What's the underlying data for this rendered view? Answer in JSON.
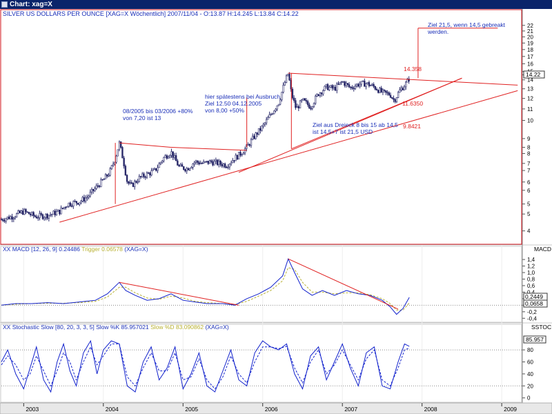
{
  "window": {
    "title": "Chart: xag=X",
    "icon": "chart-window-icon"
  },
  "chart_data": [
    {
      "panel": "price",
      "type": "candlestick",
      "title": "SILVER US DOLLARS PER OUNCE [XAG=X  Wöchentlich] 2007/11/04 - O:13.87 H:14.245 L:13.84 C:14.22",
      "last_price_label": "14.22",
      "y_tick_labels": [
        "4",
        "5",
        "5",
        "6",
        "6",
        "7",
        "7",
        "8",
        "8",
        "9",
        "10",
        "11",
        "12",
        "13",
        "14",
        "15",
        "15",
        "16",
        "17",
        "18",
        "19",
        "20",
        "21",
        "22"
      ],
      "y_tick_values": [
        4,
        4.6,
        5,
        5.6,
        6,
        6.6,
        7,
        7.6,
        8,
        8.6,
        10,
        11,
        12,
        13,
        14,
        14.6,
        15,
        16,
        17,
        18,
        19,
        20,
        21,
        22
      ],
      "y_scale": "log",
      "ylim": [
        3.6,
        23
      ],
      "series": [
        {
          "kind": "weekly-close",
          "x": [
            2002.72,
            2002.85,
            2003.0,
            2003.15,
            2003.3,
            2003.45,
            2003.55,
            2003.7,
            2003.8,
            2003.9,
            2004.0,
            2004.08,
            2004.15,
            2004.2,
            2004.25,
            2004.3,
            2004.35,
            2004.45,
            2004.55,
            2004.65,
            2004.75,
            2004.85,
            2004.95,
            2005.05,
            2005.15,
            2005.25,
            2005.35,
            2005.45,
            2005.55,
            2005.62,
            2005.7,
            2005.8,
            2005.9,
            2006.0,
            2006.1,
            2006.2,
            2006.27,
            2006.32,
            2006.36,
            2006.42,
            2006.5,
            2006.6,
            2006.7,
            2006.8,
            2006.9,
            2007.0,
            2007.1,
            2007.2,
            2007.3,
            2007.4,
            2007.5,
            2007.6,
            2007.65,
            2007.72,
            2007.8,
            2007.84
          ],
          "y": [
            4.4,
            4.5,
            4.7,
            4.5,
            4.55,
            4.7,
            5.0,
            5.1,
            5.3,
            5.7,
            6.1,
            6.5,
            7.3,
            8.3,
            7.2,
            6.0,
            5.8,
            6.2,
            6.4,
            6.6,
            7.3,
            7.7,
            6.8,
            6.7,
            7.1,
            7.0,
            7.1,
            7.0,
            6.9,
            7.2,
            7.5,
            8.0,
            8.8,
            9.5,
            10.5,
            11.6,
            13.5,
            14.8,
            12.5,
            11.0,
            11.8,
            11.2,
            12.5,
            13.2,
            13.0,
            13.8,
            13.1,
            13.5,
            13.6,
            13.2,
            12.6,
            12.4,
            11.8,
            12.8,
            13.6,
            14.2
          ]
        }
      ],
      "trendlines": [
        {
          "x": [
            2004.2,
            2004.85
          ],
          "y": [
            8.3,
            8.0
          ]
        },
        {
          "x": [
            2004.85,
            2005.8
          ],
          "y": [
            8.0,
            7.8
          ]
        },
        {
          "x": [
            2003.45,
            2009.2
          ],
          "y": [
            4.3,
            12.8
          ]
        },
        {
          "x": [
            2005.7,
            2008.5
          ],
          "y": [
            6.5,
            14.2
          ]
        },
        {
          "x": [
            2006.32,
            2009.2
          ],
          "y": [
            14.8,
            13.4
          ]
        },
        {
          "x": [
            2006.36,
            2008.5
          ],
          "y": [
            7.9,
            14.2
          ]
        }
      ],
      "vertical_markers": [
        {
          "x": 2004.15,
          "y": [
            5.0,
            8.3
          ]
        },
        {
          "x": 2005.8,
          "y": [
            8.0,
            12.1
          ]
        },
        {
          "x": 2006.36,
          "y": [
            7.9,
            14.8
          ]
        },
        {
          "x": 2007.95,
          "y": [
            14.2,
            21.5
          ]
        }
      ],
      "target_line": {
        "x": [
          2007.95,
          2008.95
        ],
        "y": 21.5
      },
      "level_labels": [
        "14.358",
        "11.6350",
        "9.8421"
      ],
      "annotations": [
        {
          "lines": [
            "08/2005 bis 03/2006 +80%",
            "von 7,20 ist 13"
          ]
        },
        {
          "lines": [
            "hier spätestens bei Ausbruch",
            "Ziel 12.50 04.12.2005",
            "von 8,00 +50%"
          ]
        },
        {
          "lines": [
            "Ziel aus Dreieck 8 bis 15 ab 14,5",
            "ist 14,5+7 ist 21,5 USD"
          ]
        },
        {
          "lines": [
            "Ziel 21,5, wenn 14,5 gebreakt",
            "werden."
          ]
        }
      ]
    },
    {
      "panel": "macd",
      "type": "line",
      "title": "XX MACD [12, 26, 9] 0.24486",
      "trigger_label": "Trigger 0.06578",
      "symbol_label": "(XAG=X)",
      "axis_title": "MACD",
      "y_tick_labels": [
        "1,4",
        "1,2",
        "1,0",
        "0,8",
        "0,6",
        "0,4",
        "0,2",
        "0",
        "-0,2",
        "-0,4"
      ],
      "y_tick_values": [
        1.4,
        1.2,
        1.0,
        0.8,
        0.6,
        0.4,
        0.2,
        0,
        -0.2,
        -0.4
      ],
      "ylim": [
        -0.5,
        1.55
      ],
      "value_labels": [
        "0,2449",
        "0,0658"
      ],
      "x": [
        2002.72,
        2002.9,
        2003.1,
        2003.3,
        2003.5,
        2003.7,
        2003.9,
        2004.05,
        2004.2,
        2004.28,
        2004.4,
        2004.55,
        2004.7,
        2004.85,
        2005.0,
        2005.15,
        2005.3,
        2005.5,
        2005.65,
        2005.8,
        2005.95,
        2006.1,
        2006.25,
        2006.32,
        2006.4,
        2006.5,
        2006.62,
        2006.75,
        2006.9,
        2007.05,
        2007.2,
        2007.35,
        2007.5,
        2007.6,
        2007.68,
        2007.76,
        2007.84
      ],
      "series": [
        {
          "name": "MACD",
          "values": [
            0.0,
            0.05,
            0.05,
            0.08,
            0.05,
            0.1,
            0.15,
            0.35,
            0.7,
            0.45,
            0.3,
            0.15,
            0.2,
            0.35,
            0.15,
            0.1,
            0.05,
            0.05,
            0.0,
            0.2,
            0.35,
            0.55,
            0.9,
            1.42,
            1.0,
            0.5,
            0.3,
            0.45,
            0.3,
            0.45,
            0.35,
            0.3,
            0.15,
            -0.05,
            -0.28,
            -0.1,
            0.24
          ]
        },
        {
          "name": "Trigger",
          "values": [
            0.0,
            0.03,
            0.05,
            0.06,
            0.06,
            0.08,
            0.12,
            0.25,
            0.55,
            0.55,
            0.38,
            0.22,
            0.18,
            0.28,
            0.22,
            0.12,
            0.08,
            0.05,
            0.02,
            0.12,
            0.28,
            0.45,
            0.75,
            1.15,
            1.1,
            0.7,
            0.4,
            0.4,
            0.35,
            0.38,
            0.38,
            0.32,
            0.2,
            0.05,
            -0.15,
            -0.15,
            0.07
          ]
        }
      ],
      "trendlines": [
        {
          "x": [
            2004.2,
            2005.7
          ],
          "y": [
            0.7,
            0.0
          ]
        },
        {
          "x": [
            2006.32,
            2007.7
          ],
          "y": [
            1.42,
            -0.12
          ]
        }
      ],
      "reference_levels": [
        0.0
      ]
    },
    {
      "panel": "stochastic",
      "type": "line",
      "title": "XX Stochastic Slow [80, 20, 3, 3, 5] Slow %K 85.957021",
      "slow_d_label": "Slow %D 83.090862",
      "symbol_label": "(XAG=X)",
      "axis_title": "SSTOC",
      "y_tick_labels": [
        "80",
        "60",
        "40",
        "20",
        "0"
      ],
      "y_tick_values": [
        80,
        60,
        40,
        20,
        0
      ],
      "ylim": [
        -5,
        110
      ],
      "value_labels": [
        "85.957"
      ],
      "x": [
        2002.72,
        2002.8,
        2002.9,
        2003.0,
        2003.08,
        2003.16,
        2003.25,
        2003.34,
        2003.42,
        2003.5,
        2003.58,
        2003.66,
        2003.75,
        2003.84,
        2003.92,
        2004.0,
        2004.1,
        2004.2,
        2004.3,
        2004.4,
        2004.5,
        2004.6,
        2004.7,
        2004.8,
        2004.9,
        2005.0,
        2005.1,
        2005.2,
        2005.3,
        2005.4,
        2005.5,
        2005.6,
        2005.7,
        2005.8,
        2005.9,
        2006.0,
        2006.1,
        2006.2,
        2006.3,
        2006.4,
        2006.5,
        2006.6,
        2006.7,
        2006.8,
        2006.9,
        2007.0,
        2007.1,
        2007.2,
        2007.3,
        2007.4,
        2007.5,
        2007.6,
        2007.7,
        2007.78,
        2007.84
      ],
      "series": [
        {
          "name": "Slow %K",
          "values": [
            60,
            80,
            40,
            15,
            50,
            85,
            30,
            10,
            60,
            90,
            45,
            20,
            75,
            95,
            40,
            80,
            95,
            90,
            20,
            10,
            60,
            85,
            30,
            50,
            85,
            15,
            40,
            75,
            20,
            10,
            45,
            80,
            30,
            20,
            75,
            95,
            85,
            80,
            90,
            40,
            15,
            70,
            85,
            30,
            60,
            90,
            50,
            20,
            75,
            85,
            20,
            15,
            60,
            90,
            86
          ]
        },
        {
          "name": "Slow %D",
          "values": [
            55,
            70,
            55,
            30,
            40,
            70,
            45,
            20,
            45,
            75,
            60,
            30,
            60,
            85,
            55,
            70,
            90,
            90,
            35,
            20,
            50,
            75,
            45,
            45,
            75,
            30,
            35,
            65,
            30,
            15,
            35,
            70,
            40,
            25,
            60,
            85,
            85,
            82,
            86,
            50,
            25,
            60,
            80,
            40,
            55,
            80,
            55,
            30,
            65,
            80,
            30,
            20,
            50,
            80,
            83
          ]
        }
      ],
      "reference_levels": [
        80,
        20
      ]
    }
  ],
  "x_axis": {
    "tick_labels": [
      "2003",
      "2004",
      "2005",
      "2006",
      "2007",
      "2008",
      "2009"
    ],
    "tick_values": [
      2003,
      2004,
      2005,
      2006,
      2007,
      2008,
      2009
    ],
    "xlim": [
      2002.72,
      2009.25
    ]
  },
  "colors": {
    "price_border": "#d0101a",
    "trendline": "#e02020",
    "annotation_text": "#1a2fb8",
    "level_text": "#e02020",
    "candle": "#2a2a6a",
    "indicator_main": "#1020cc",
    "indicator_trigger": "#b8b030",
    "reference_dotted": "#888888",
    "titlebar": "#0a246a"
  }
}
